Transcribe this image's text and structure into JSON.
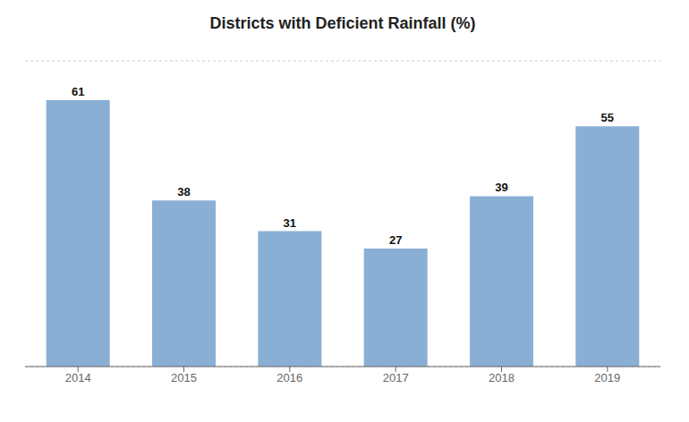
{
  "chart_data": {
    "type": "bar",
    "title": "Districts with Deficient Rainfall (%)",
    "categories": [
      "2014",
      "2015",
      "2016",
      "2017",
      "2018",
      "2019"
    ],
    "values": [
      61,
      38,
      31,
      27,
      39,
      55
    ],
    "color": "#8aafd5",
    "ylim": [
      0,
      70
    ],
    "yticks": [
      10,
      20,
      30,
      40,
      50,
      60,
      70
    ],
    "grid": true,
    "data_labels": true,
    "tick_labels": "x"
  }
}
